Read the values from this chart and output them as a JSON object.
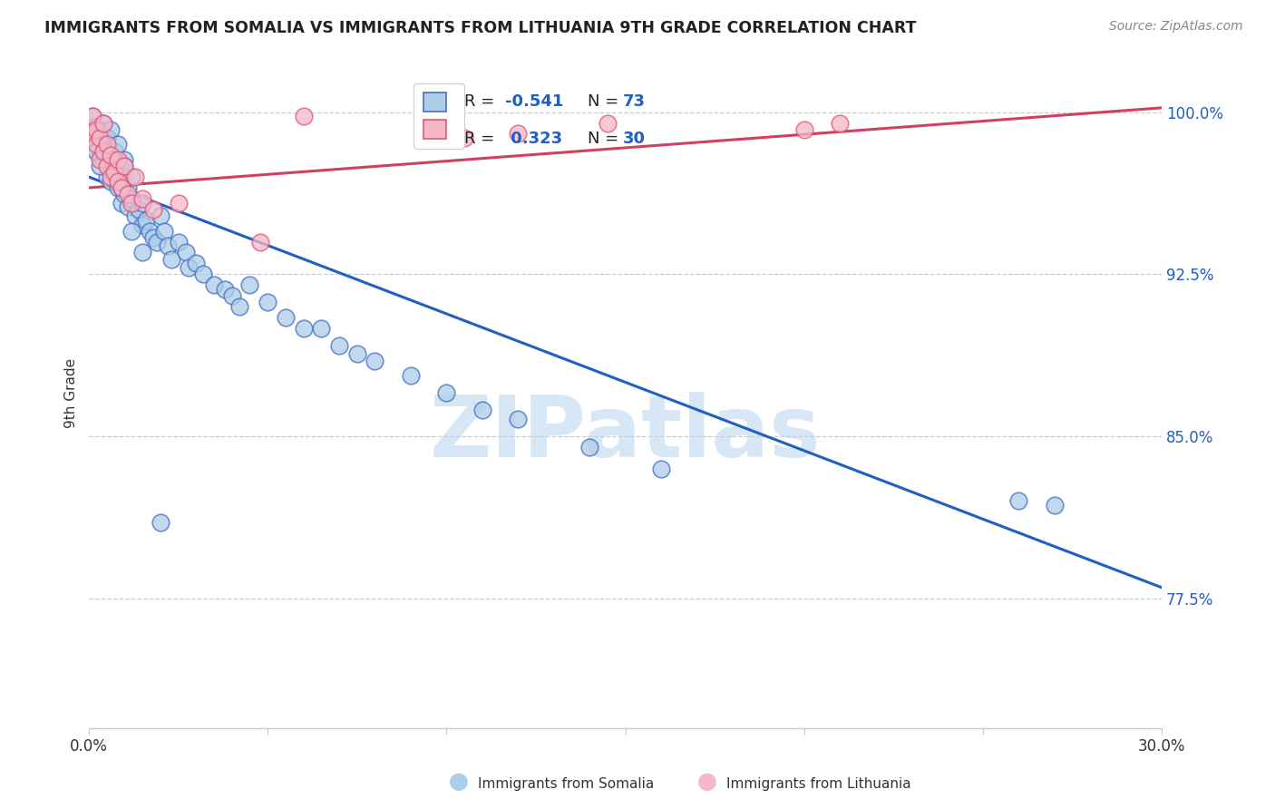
{
  "title": "IMMIGRANTS FROM SOMALIA VS IMMIGRANTS FROM LITHUANIA 9TH GRADE CORRELATION CHART",
  "source": "Source: ZipAtlas.com",
  "ylabel_label": "9th Grade",
  "ytick_labels": [
    "77.5%",
    "85.0%",
    "92.5%",
    "100.0%"
  ],
  "ytick_values": [
    0.775,
    0.85,
    0.925,
    1.0
  ],
  "xlim": [
    0.0,
    0.3
  ],
  "ylim": [
    0.715,
    1.025
  ],
  "legend_blue_r": "-0.541",
  "legend_blue_n": "73",
  "legend_pink_r": "0.323",
  "legend_pink_n": "30",
  "color_blue_fill": "#aecde8",
  "color_blue_edge": "#4472c4",
  "color_pink_fill": "#f4b8c8",
  "color_pink_edge": "#e05878",
  "trendline_blue_color": "#2060c0",
  "trendline_pink_color": "#d04060",
  "watermark": "ZIPatlas",
  "watermark_color": "#b8d4f0",
  "blue_x": [
    0.001,
    0.002,
    0.002,
    0.003,
    0.003,
    0.004,
    0.004,
    0.005,
    0.005,
    0.006,
    0.006,
    0.007,
    0.007,
    0.008,
    0.008,
    0.009,
    0.009,
    0.01,
    0.01,
    0.011,
    0.011,
    0.012,
    0.012,
    0.013,
    0.014,
    0.015,
    0.015,
    0.016,
    0.017,
    0.018,
    0.019,
    0.02,
    0.021,
    0.022,
    0.023,
    0.025,
    0.027,
    0.028,
    0.03,
    0.032,
    0.035,
    0.038,
    0.04,
    0.042,
    0.045,
    0.05,
    0.055,
    0.06,
    0.065,
    0.07,
    0.075,
    0.08,
    0.09,
    0.1,
    0.11,
    0.12,
    0.14,
    0.16,
    0.26,
    0.27,
    0.001,
    0.002,
    0.003,
    0.004,
    0.005,
    0.006,
    0.007,
    0.008,
    0.009,
    0.01,
    0.012,
    0.015,
    0.02
  ],
  "blue_y": [
    0.998,
    0.993,
    0.986,
    0.98,
    0.992,
    0.978,
    0.985,
    0.97,
    0.988,
    0.976,
    0.968,
    0.982,
    0.972,
    0.965,
    0.975,
    0.958,
    0.97,
    0.962,
    0.978,
    0.956,
    0.965,
    0.96,
    0.97,
    0.952,
    0.955,
    0.948,
    0.958,
    0.95,
    0.945,
    0.942,
    0.94,
    0.952,
    0.945,
    0.938,
    0.932,
    0.94,
    0.935,
    0.928,
    0.93,
    0.925,
    0.92,
    0.918,
    0.915,
    0.91,
    0.92,
    0.912,
    0.905,
    0.9,
    0.9,
    0.892,
    0.888,
    0.885,
    0.878,
    0.87,
    0.862,
    0.858,
    0.845,
    0.835,
    0.82,
    0.818,
    0.988,
    0.982,
    0.975,
    0.995,
    0.988,
    0.992,
    0.978,
    0.985,
    0.965,
    0.975,
    0.945,
    0.935,
    0.81
  ],
  "pink_x": [
    0.001,
    0.001,
    0.002,
    0.002,
    0.003,
    0.003,
    0.004,
    0.004,
    0.005,
    0.005,
    0.006,
    0.006,
    0.007,
    0.008,
    0.008,
    0.009,
    0.01,
    0.011,
    0.012,
    0.013,
    0.015,
    0.018,
    0.025,
    0.048,
    0.06,
    0.105,
    0.12,
    0.145,
    0.2,
    0.21
  ],
  "pink_y": [
    0.998,
    0.99,
    0.985,
    0.992,
    0.988,
    0.978,
    0.982,
    0.995,
    0.975,
    0.985,
    0.97,
    0.98,
    0.972,
    0.968,
    0.978,
    0.965,
    0.975,
    0.962,
    0.958,
    0.97,
    0.96,
    0.955,
    0.958,
    0.94,
    0.998,
    0.988,
    0.99,
    0.995,
    0.992,
    0.995
  ],
  "blue_trend_x0": 0.0,
  "blue_trend_x1": 0.3,
  "blue_trend_y0": 0.97,
  "blue_trend_y1": 0.78,
  "pink_trend_x0": 0.0,
  "pink_trend_x1": 0.3,
  "pink_trend_y0": 0.965,
  "pink_trend_y1": 1.002
}
